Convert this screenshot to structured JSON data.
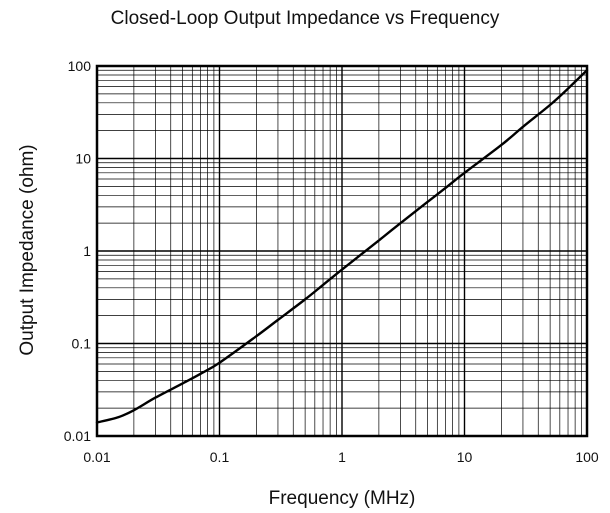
{
  "chart_data": {
    "type": "line",
    "title": "Closed-Loop Output Impedance vs Frequency",
    "xlabel": "Frequency (MHz)",
    "ylabel": "Output Impedance (ohm)",
    "x_scale": "log",
    "y_scale": "log",
    "xlim": [
      0.01,
      100
    ],
    "ylim": [
      0.01,
      100
    ],
    "x_ticks": [
      "0.01",
      "0.1",
      "1",
      "10",
      "100"
    ],
    "y_ticks": [
      "0.01",
      "0.1",
      "1",
      "10",
      "100"
    ],
    "grid": true,
    "series": [
      {
        "color": "#000000",
        "x": [
          0.01,
          0.015,
          0.02,
          0.03,
          0.05,
          0.07,
          0.1,
          0.2,
          0.3,
          0.5,
          0.7,
          1,
          2,
          3,
          5,
          7,
          10,
          20,
          30,
          50,
          70,
          100
        ],
        "y": [
          0.014,
          0.016,
          0.019,
          0.026,
          0.037,
          0.047,
          0.062,
          0.12,
          0.18,
          0.3,
          0.43,
          0.63,
          1.3,
          2.0,
          3.4,
          4.8,
          7.0,
          14,
          22,
          38,
          57,
          90
        ]
      }
    ]
  }
}
